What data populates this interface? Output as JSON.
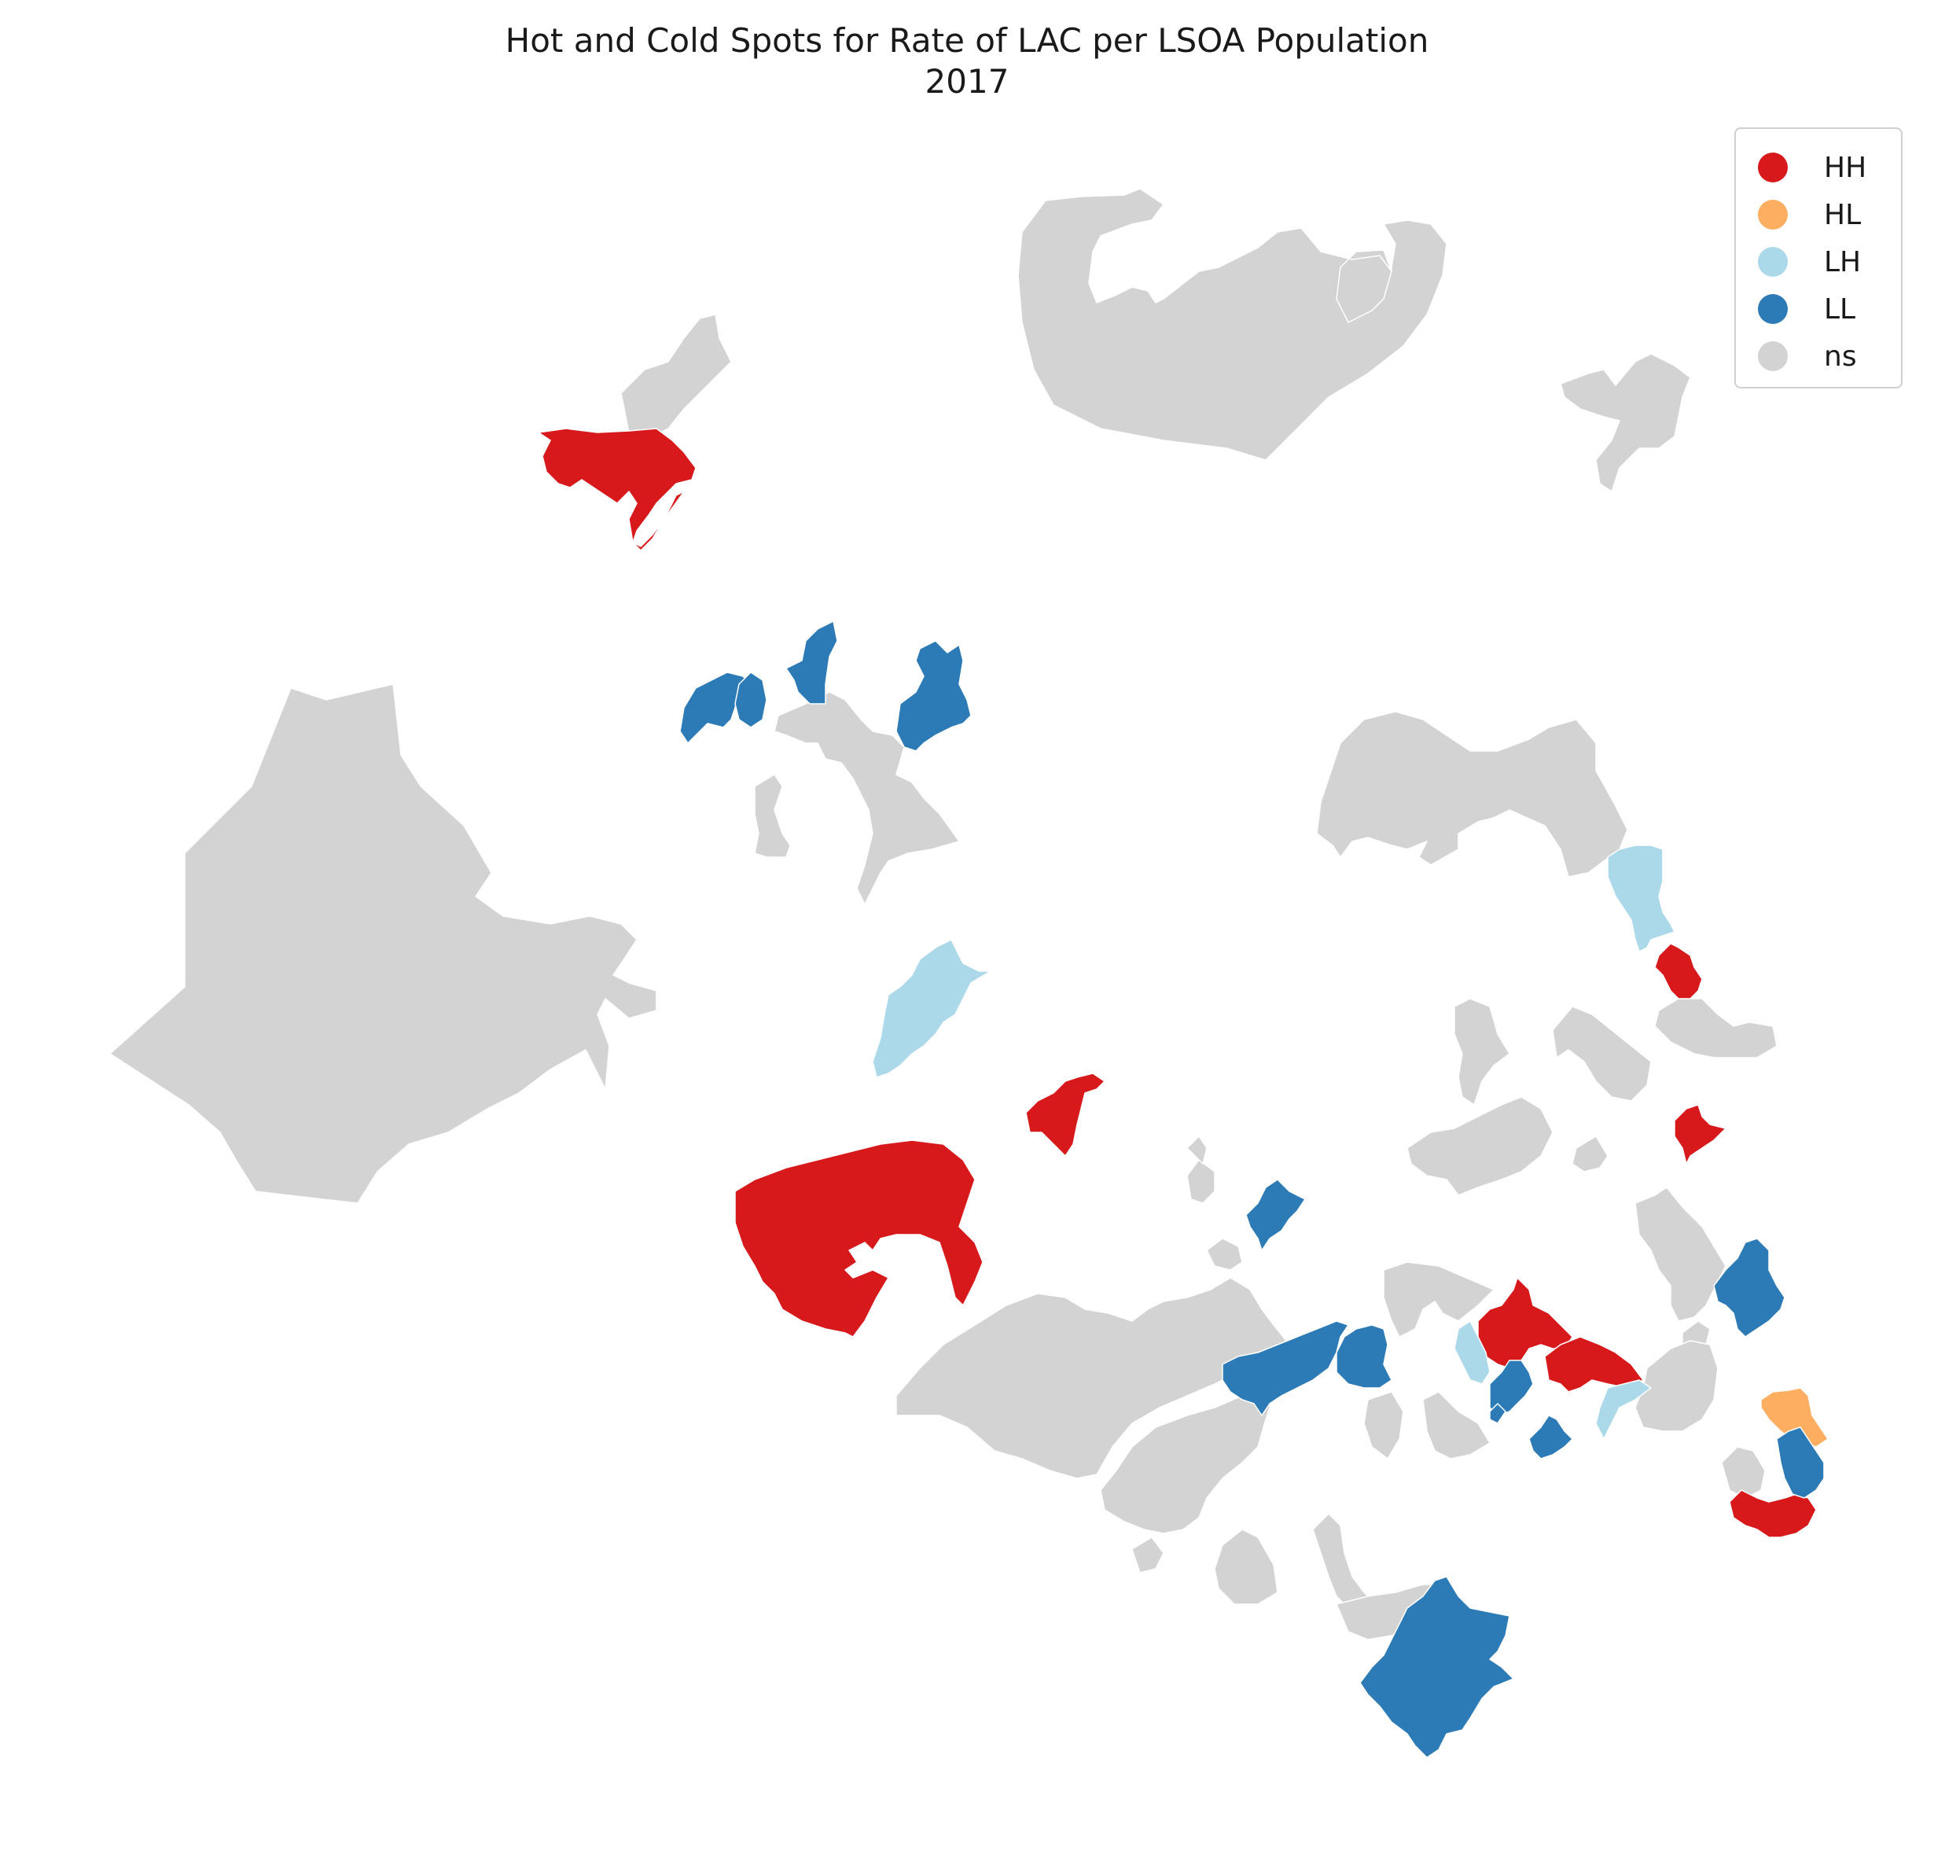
{
  "title": {
    "line1": "Hot and Cold Spots for Rate of LAC per LSOA Population",
    "line2": "2017"
  },
  "legend": [
    {
      "key": "HH",
      "label": "HH",
      "color": "#d7191c"
    },
    {
      "key": "HL",
      "label": "HL",
      "color": "#fdae61"
    },
    {
      "key": "LH",
      "label": "LH",
      "color": "#abd9e9"
    },
    {
      "key": "LL",
      "label": "LL",
      "color": "#2c7bb6"
    },
    {
      "key": "ns",
      "label": "ns",
      "color": "#d3d3d3"
    }
  ],
  "map": {
    "type": "choropleth",
    "classification": "LISA cluster map",
    "categories": [
      "HH",
      "HL",
      "LH",
      "LL",
      "ns"
    ],
    "legend_position": "top-right",
    "axes_visible": false
  }
}
